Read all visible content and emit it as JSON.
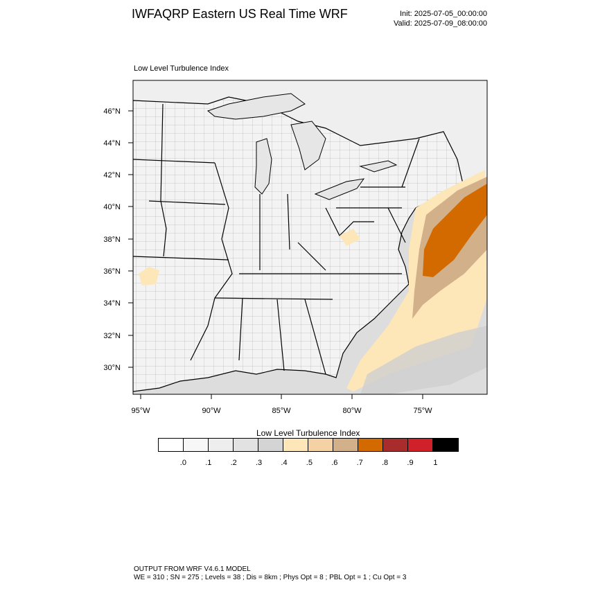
{
  "header": {
    "title": "IWFAQRP Eastern US Real Time WRF",
    "init": "Init: 2025-07-05_00:00:00",
    "valid": "Valid: 2025-07-09_08:00:00"
  },
  "map": {
    "subtitle": "Low Level Turbulence Index",
    "lat_labels": [
      "46°N",
      "44°N",
      "42°N",
      "40°N",
      "38°N",
      "36°N",
      "34°N",
      "32°N",
      "30°N"
    ],
    "lon_labels": [
      "95°W",
      "90°W",
      "85°W",
      "80°W",
      "75°W"
    ],
    "colors": {
      "land": "#f3f3f3",
      "lake": "#eaeaea",
      "ocean": "#dddddd",
      "mid_gray": "#cfcfcf",
      "tan_light": "#fde6b8",
      "tan": "#d2b08a",
      "orange": "#d26a00"
    }
  },
  "colorbar": {
    "title": "Low Level Turbulence Index",
    "colors": [
      "#ffffff",
      "#f7f7f7",
      "#eeeeee",
      "#e2e2e2",
      "#d4d4d4",
      "#fde6b8",
      "#f5d2a4",
      "#d2b08a",
      "#d26a00",
      "#a82c2c",
      "#d0202a",
      "#000000"
    ],
    "tick_labels": [
      ".0",
      ".1",
      ".2",
      ".3",
      ".4",
      ".5",
      ".6",
      ".7",
      ".8",
      ".9",
      "1"
    ]
  },
  "footer": {
    "line1": "OUTPUT FROM WRF V4.6.1 MODEL",
    "line2": "WE = 310 ; SN = 275 ; Levels = 38 ; Dis = 8km ; Phys Opt = 8 ; PBL Opt = 1 ; Cu Opt = 3"
  }
}
